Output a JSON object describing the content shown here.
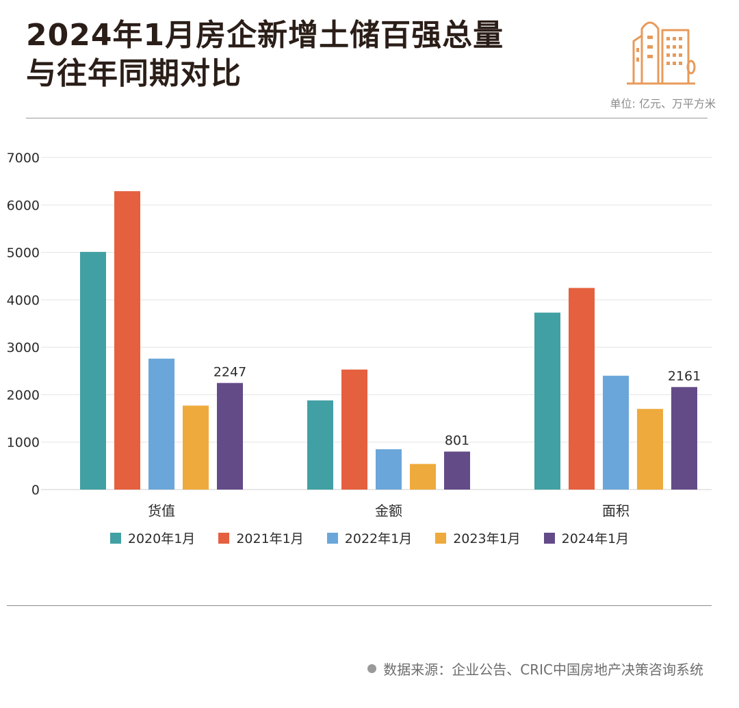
{
  "title": {
    "line1": "2024年1月房企新增土储百强总量",
    "line2": "与往年同期对比"
  },
  "unit_text": "单位: 亿元、万平方米",
  "source_text": "数据来源：企业公告、CRIC中国房地产决策咨询系统",
  "logo_icon": "buildings-icon",
  "colors": {
    "accent": "#e89a5a",
    "text": "#2b1e18",
    "grid": "#e3e3e3"
  },
  "chart_data": {
    "type": "bar",
    "categories": [
      "货值",
      "金额",
      "面积"
    ],
    "ylim": [
      0,
      7000
    ],
    "yticks": [
      0,
      1000,
      2000,
      3000,
      4000,
      5000,
      6000,
      7000
    ],
    "grid": true,
    "legend_position": "bottom",
    "series": [
      {
        "name": "2020年1月",
        "color": "#41a0a3",
        "values": [
          5010,
          1880,
          3730
        ]
      },
      {
        "name": "2021年1月",
        "color": "#e5603f",
        "values": [
          6290,
          2530,
          4250
        ]
      },
      {
        "name": "2022年1月",
        "color": "#6aa6d9",
        "values": [
          2760,
          850,
          2400
        ]
      },
      {
        "name": "2023年1月",
        "color": "#eeaa3c",
        "values": [
          1770,
          540,
          1700
        ]
      },
      {
        "name": "2024年1月",
        "color": "#634b88",
        "values": [
          2247,
          801,
          2161
        ]
      }
    ],
    "data_labels": [
      {
        "series": 4,
        "category": 0,
        "text": "2247"
      },
      {
        "series": 4,
        "category": 1,
        "text": "801"
      },
      {
        "series": 4,
        "category": 2,
        "text": "2161"
      }
    ]
  }
}
